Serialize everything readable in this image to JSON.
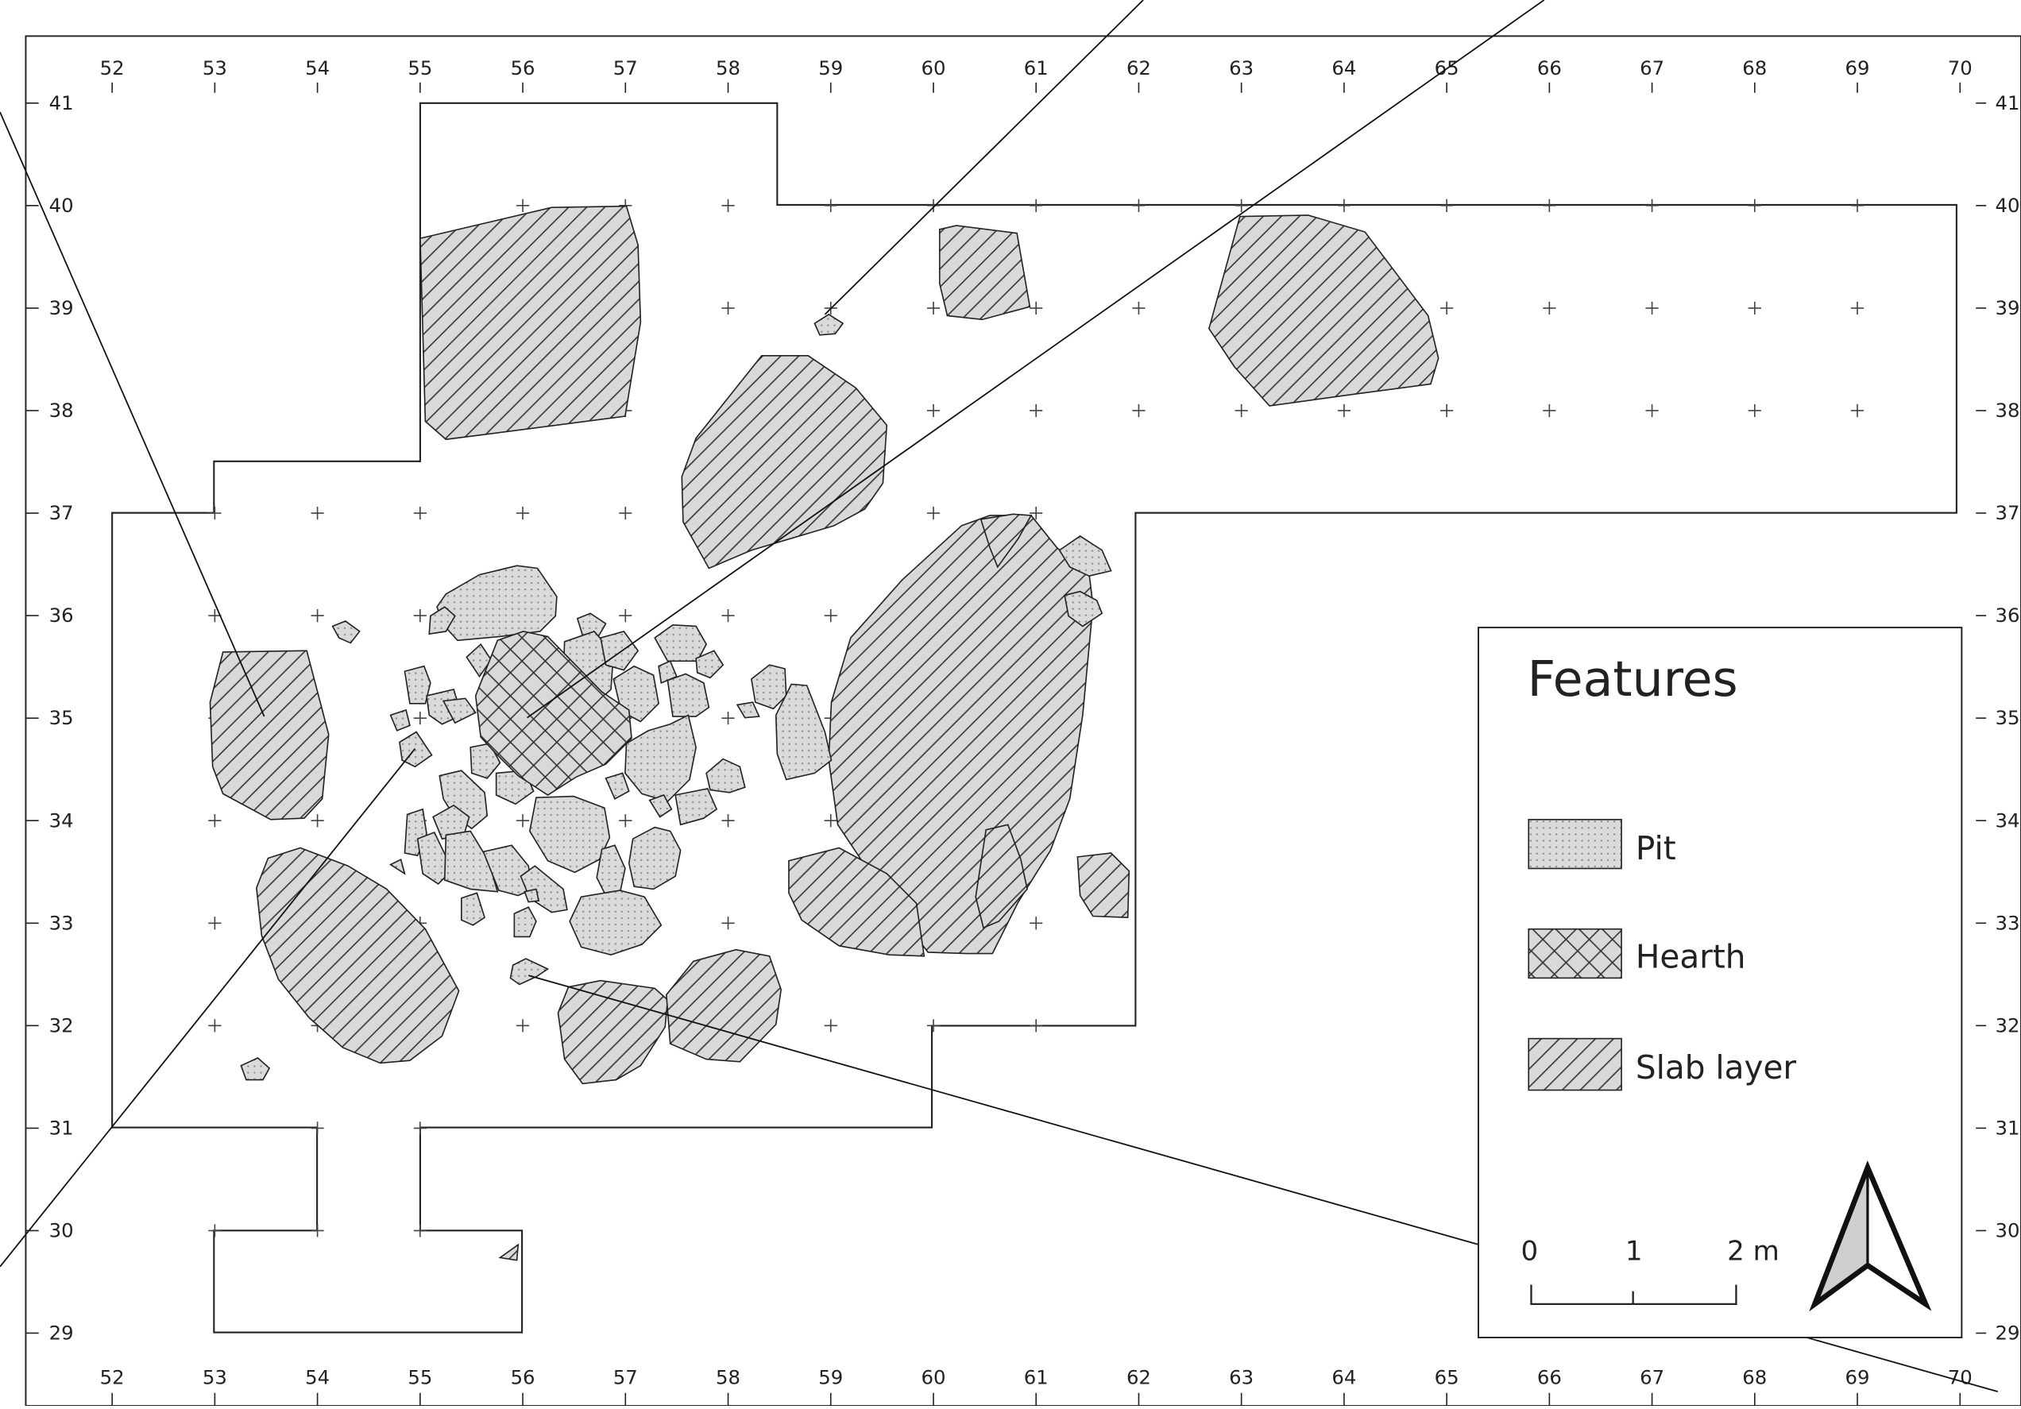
{
  "map": {
    "x_ticks": [
      "52",
      "53",
      "54",
      "55",
      "56",
      "57",
      "58",
      "59",
      "60",
      "61",
      "62",
      "63",
      "64",
      "65",
      "66",
      "67",
      "68",
      "69",
      "70"
    ],
    "y_ticks": [
      "41",
      "40",
      "39",
      "38",
      "37",
      "36",
      "35",
      "34",
      "33",
      "32",
      "31",
      "30",
      "29"
    ],
    "x_range": [
      52,
      70
    ],
    "y_range": [
      29,
      41
    ]
  },
  "legend": {
    "title": "Features",
    "items": [
      {
        "label": "Pit",
        "pattern": "dots"
      },
      {
        "label": "Hearth",
        "pattern": "crosshatch"
      },
      {
        "label": "Slab layer",
        "pattern": "diagonal"
      }
    ]
  },
  "scale_bar": {
    "labels": [
      "0",
      "1",
      "2 m"
    ]
  },
  "north_arrow": {
    "icon": "north-arrow-icon"
  },
  "colors": {
    "feature_fill": "#d9d9d9",
    "outline": "#222222",
    "background": "#ffffff"
  }
}
